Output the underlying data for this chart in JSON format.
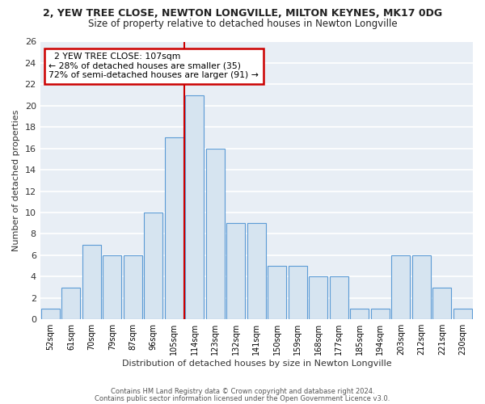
{
  "title_line1": "2, YEW TREE CLOSE, NEWTON LONGVILLE, MILTON KEYNES, MK17 0DG",
  "title_line2": "Size of property relative to detached houses in Newton Longville",
  "xlabel": "Distribution of detached houses by size in Newton Longville",
  "ylabel": "Number of detached properties",
  "categories": [
    "52sqm",
    "61sqm",
    "70sqm",
    "79sqm",
    "87sqm",
    "96sqm",
    "105sqm",
    "114sqm",
    "123sqm",
    "132sqm",
    "141sqm",
    "150sqm",
    "159sqm",
    "168sqm",
    "177sqm",
    "185sqm",
    "194sqm",
    "203sqm",
    "212sqm",
    "221sqm",
    "230sqm"
  ],
  "values": [
    1,
    3,
    7,
    6,
    6,
    10,
    17,
    21,
    16,
    9,
    9,
    5,
    5,
    4,
    4,
    1,
    1,
    6,
    6,
    3,
    1
  ],
  "bar_color": "#d6e4f0",
  "bar_edge_color": "#5b9bd5",
  "property_label": "2 YEW TREE CLOSE: 107sqm",
  "annotation_line2": "← 28% of detached houses are smaller (35)",
  "annotation_line3": "72% of semi-detached houses are larger (91) →",
  "vline_color": "#cc0000",
  "annotation_box_edge": "#cc0000",
  "ylim": [
    0,
    26
  ],
  "yticks": [
    0,
    2,
    4,
    6,
    8,
    10,
    12,
    14,
    16,
    18,
    20,
    22,
    24,
    26
  ],
  "footer_line1": "Contains HM Land Registry data © Crown copyright and database right 2024.",
  "footer_line2": "Contains public sector information licensed under the Open Government Licence v3.0.",
  "bg_color": "#ffffff",
  "plot_bg_color": "#e8eef5",
  "grid_color": "#ffffff",
  "title_fontsize": 9,
  "subtitle_fontsize": 8.5,
  "bar_width": 0.9
}
